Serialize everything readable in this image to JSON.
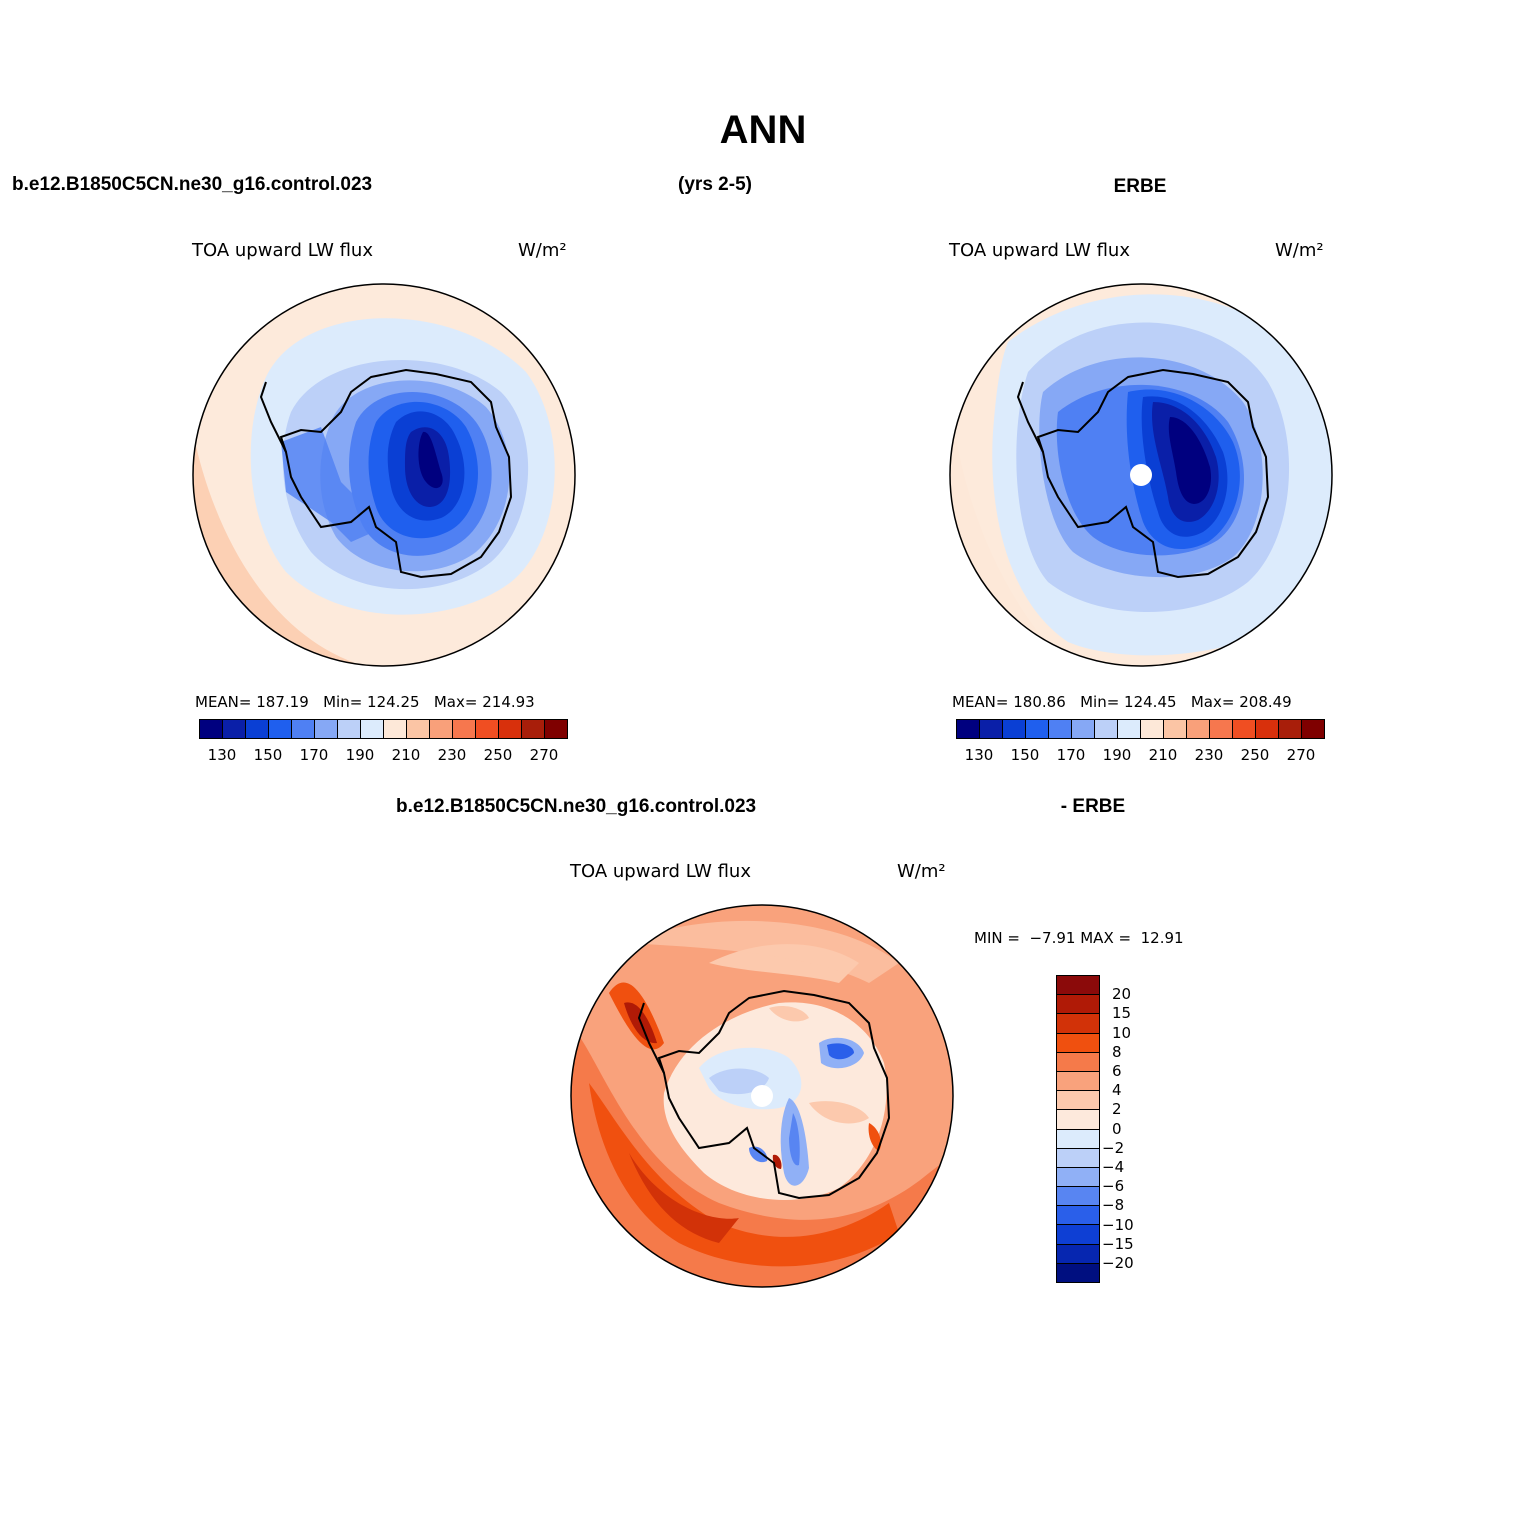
{
  "figure": {
    "title": "ANN",
    "case_name": "b.e12.B1850C5CN.ne30_g16.control.023",
    "years": "(yrs 2-5)",
    "obs_name": "ERBE",
    "diff_case": "b.e12.B1850C5CN.ne30_g16.control.023",
    "diff_obs": "- ERBE"
  },
  "panels": {
    "model": {
      "variable": "TOA upward LW flux",
      "units": "W/m²",
      "stats": {
        "mean_label": "MEAN=",
        "mean": "187.19",
        "min_label": "Min=",
        "min": "124.25",
        "max_label": "Max=",
        "max": "214.93"
      }
    },
    "obs": {
      "variable": "TOA upward LW flux",
      "units": "W/m²",
      "stats": {
        "mean_label": "MEAN=",
        "mean": "180.86",
        "min_label": "Min=",
        "min": "124.45",
        "max_label": "Max=",
        "max": "208.49"
      }
    },
    "diff": {
      "variable": "TOA upward LW flux",
      "units": "W/m²",
      "stats": {
        "min_label": "MIN =",
        "min": "−7.91",
        "max_label": "MAX =",
        "max": "12.91"
      }
    }
  },
  "colorbar_main": {
    "colors": [
      "#00007f",
      "#0a1fa8",
      "#0a3fd4",
      "#1f5fee",
      "#4f80f3",
      "#86a8f5",
      "#bcd0f8",
      "#dcebfc",
      "#fde8d8",
      "#fbc5a5",
      "#f9a07a",
      "#f6774e",
      "#f04e22",
      "#d8300c",
      "#a81e0a",
      "#7f0000"
    ],
    "labels": [
      "130",
      "150",
      "170",
      "190",
      "210",
      "230",
      "250",
      "270"
    ]
  },
  "colorbar_diff": {
    "colors": [
      "#8b0a0a",
      "#b01a06",
      "#d23208",
      "#f0500f",
      "#f57a4a",
      "#f9a27c",
      "#fcc9ad",
      "#fde9dc",
      "#dcebfc",
      "#bcd0f8",
      "#90b0f6",
      "#5885f2",
      "#2a5fea",
      "#0e3fd4",
      "#0626b0",
      "#000f80"
    ],
    "labels": [
      "20",
      "15",
      "10",
      "8",
      "6",
      "4",
      "2",
      "0",
      "−2",
      "−4",
      "−6",
      "−8",
      "−10",
      "−15",
      "−20"
    ]
  }
}
